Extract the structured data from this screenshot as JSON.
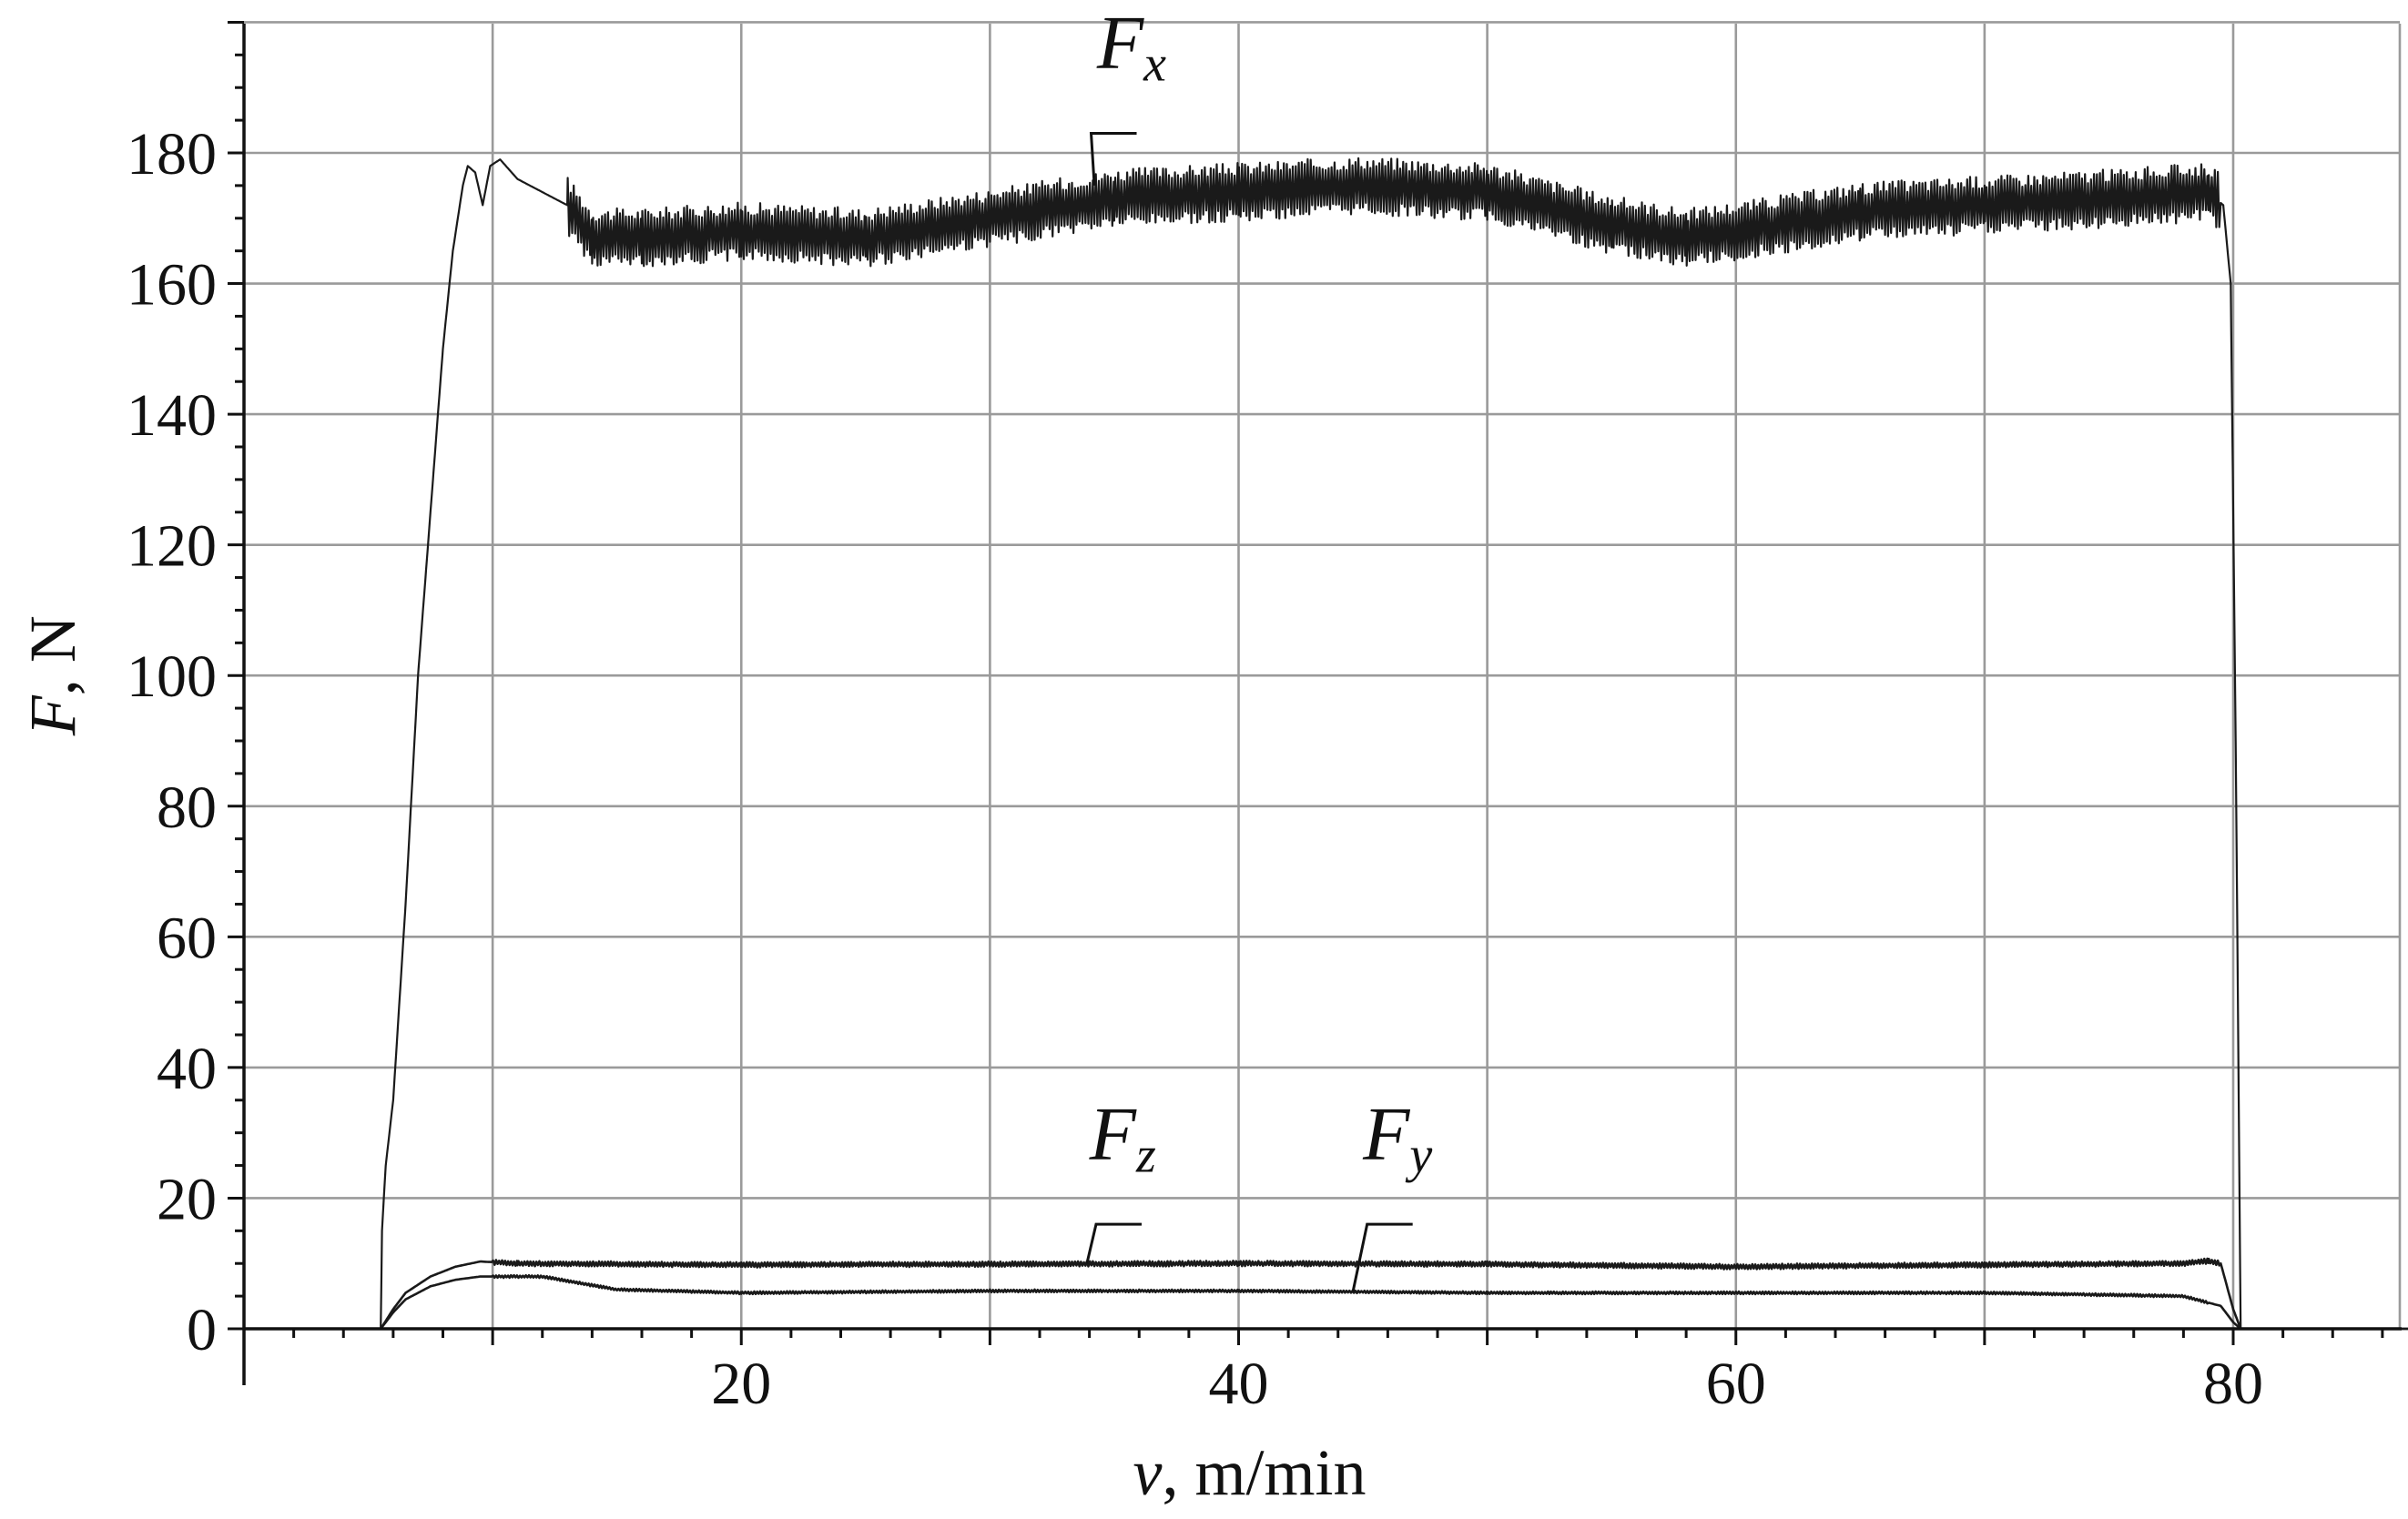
{
  "chart_data": {
    "type": "line",
    "xlabel": {
      "var": "v",
      "rest": ", m/min"
    },
    "ylabel": {
      "var": "F",
      "rest": ", N"
    },
    "xlim": [
      0,
      88
    ],
    "ylim": [
      0,
      200
    ],
    "x_ticks": [
      20,
      40,
      60,
      80
    ],
    "y_ticks": [
      0,
      20,
      40,
      60,
      80,
      100,
      120,
      140,
      160,
      180
    ],
    "x_grid": [
      10,
      20,
      30,
      40,
      50,
      60,
      70,
      80
    ],
    "grid": true,
    "legend": "none",
    "series": [
      {
        "name": "Fx",
        "label_main": "F",
        "label_sub": "x",
        "noise_amplitude": 4.5,
        "noise_from_x": 13,
        "noise_to_x": 79.5,
        "points": [
          [
            0,
            0
          ],
          [
            5.5,
            0
          ],
          [
            5.55,
            15
          ],
          [
            5.7,
            25
          ],
          [
            6.0,
            35
          ],
          [
            6.5,
            65
          ],
          [
            7.0,
            100
          ],
          [
            7.3,
            115
          ],
          [
            7.6,
            130
          ],
          [
            8.0,
            150
          ],
          [
            8.4,
            165
          ],
          [
            8.8,
            175
          ],
          [
            9.0,
            178
          ],
          [
            9.3,
            177
          ],
          [
            9.6,
            172
          ],
          [
            9.9,
            178
          ],
          [
            10.3,
            179
          ],
          [
            11,
            176
          ],
          [
            12,
            174
          ],
          [
            13,
            172
          ],
          [
            14,
            167
          ],
          [
            16,
            167
          ],
          [
            20,
            168
          ],
          [
            25,
            167
          ],
          [
            30,
            170
          ],
          [
            35,
            173
          ],
          [
            40,
            174
          ],
          [
            45,
            175
          ],
          [
            50,
            174
          ],
          [
            55,
            169
          ],
          [
            58,
            167
          ],
          [
            60,
            168
          ],
          [
            65,
            171
          ],
          [
            70,
            172
          ],
          [
            75,
            173
          ],
          [
            79,
            174
          ],
          [
            79.6,
            172
          ],
          [
            79.9,
            160
          ],
          [
            80.1,
            90
          ],
          [
            80.3,
            0
          ],
          [
            88,
            0
          ]
        ]
      },
      {
        "name": "Fz",
        "label_main": "F",
        "label_sub": "z",
        "noise_amplitude": 0.4,
        "noise_from_x": 10,
        "noise_to_x": 79.5,
        "points": [
          [
            0,
            0
          ],
          [
            5.5,
            0
          ],
          [
            6.0,
            3
          ],
          [
            6.5,
            5.5
          ],
          [
            7.5,
            8
          ],
          [
            8.5,
            9.5
          ],
          [
            9.5,
            10.3
          ],
          [
            11,
            10
          ],
          [
            20,
            9.8
          ],
          [
            30,
            9.9
          ],
          [
            40,
            10
          ],
          [
            50,
            9.9
          ],
          [
            60,
            9.5
          ],
          [
            70,
            9.8
          ],
          [
            78,
            10
          ],
          [
            79,
            10.4
          ],
          [
            79.5,
            10
          ],
          [
            80,
            3
          ],
          [
            80.3,
            0
          ],
          [
            88,
            0
          ]
        ]
      },
      {
        "name": "Fy",
        "label_main": "F",
        "label_sub": "y",
        "noise_amplitude": 0.2,
        "noise_from_x": 10,
        "noise_to_x": 79,
        "points": [
          [
            0,
            0
          ],
          [
            5.5,
            0
          ],
          [
            6.0,
            2.5
          ],
          [
            6.5,
            4.5
          ],
          [
            7.5,
            6.5
          ],
          [
            8.5,
            7.5
          ],
          [
            9.5,
            8
          ],
          [
            12,
            8
          ],
          [
            13.5,
            7
          ],
          [
            15,
            6
          ],
          [
            20,
            5.5
          ],
          [
            30,
            5.8
          ],
          [
            40,
            5.8
          ],
          [
            50,
            5.5
          ],
          [
            60,
            5.5
          ],
          [
            70,
            5.5
          ],
          [
            78,
            5
          ],
          [
            79.5,
            3.5
          ],
          [
            80,
            1
          ],
          [
            80.3,
            0
          ],
          [
            88,
            0
          ]
        ]
      }
    ],
    "annotations": [
      {
        "series": "Fx",
        "text_main": "F",
        "text_sub": "x",
        "text_at": [
          34.3,
          193
        ],
        "hook_to": [
          35.9,
          183
        ],
        "tip": [
          34.2,
          175
        ]
      },
      {
        "series": "Fz",
        "text_main": "F",
        "text_sub": "z",
        "text_at": [
          34.0,
          26
        ],
        "hook_to": [
          36.1,
          16
        ],
        "tip": [
          33.9,
          10
        ]
      },
      {
        "series": "Fy",
        "text_main": "F",
        "text_sub": "y",
        "text_at": [
          45.0,
          26
        ],
        "hook_to": [
          47.0,
          16
        ],
        "tip": [
          44.6,
          5.7
        ]
      }
    ]
  }
}
